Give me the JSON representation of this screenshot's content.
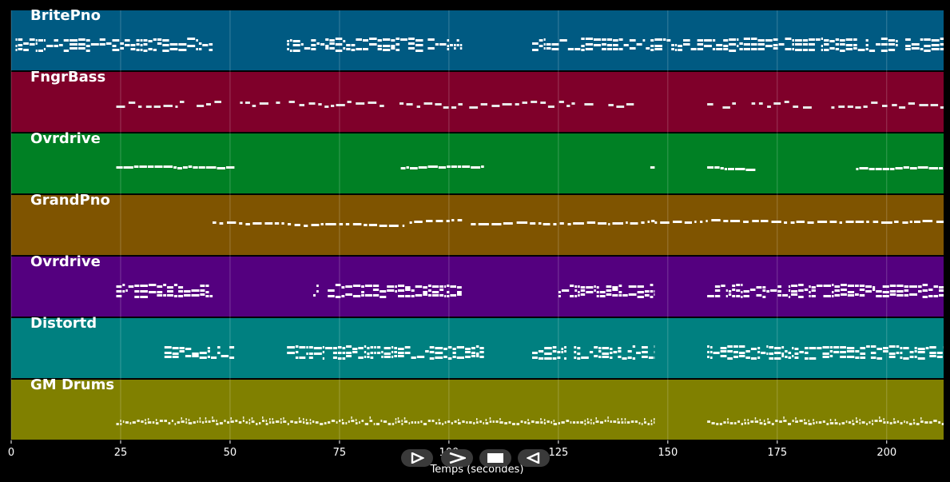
{
  "colors": {
    "background": "#000000",
    "note": "#ffffff",
    "grid": "#ffffff",
    "button": "#3a3a3a"
  },
  "controls": [
    {
      "name": "play-button",
      "icon": "play-outline-icon"
    },
    {
      "name": "fast-forward-button",
      "icon": "chevron-right-icon"
    },
    {
      "name": "stop-button",
      "icon": "stop-icon"
    },
    {
      "name": "rewind-button",
      "icon": "play-reverse-icon"
    }
  ],
  "chart_data": {
    "type": "piano-roll",
    "xlabel": "Temps (secondes)",
    "xlim": [
      0,
      213
    ],
    "xticks": [
      0,
      25,
      50,
      75,
      100,
      125,
      150,
      175,
      200
    ],
    "grid": true,
    "tracks": [
      {
        "name": "BritePno",
        "color": "#005a82",
        "style": "dense",
        "segments": [
          [
            1,
            24
          ],
          [
            24,
            46
          ],
          [
            63,
            103
          ],
          [
            119,
            147
          ],
          [
            147,
            213
          ]
        ]
      },
      {
        "name": "FngrBass",
        "color": "#7f002a",
        "style": "sparse",
        "segments": [
          [
            24,
            147
          ],
          [
            159,
            213
          ]
        ]
      },
      {
        "name": "Ovrdrive",
        "color": "#008024",
        "style": "line",
        "segments": [
          [
            24,
            51
          ],
          [
            89,
            108
          ],
          [
            146,
            147
          ],
          [
            159,
            170
          ],
          [
            193,
            213
          ]
        ]
      },
      {
        "name": "GrandPno",
        "color": "#7f5400",
        "style": "mixed",
        "segments": [
          [
            46,
            90
          ],
          [
            91,
            103
          ],
          [
            105,
            147
          ],
          [
            147,
            213
          ]
        ]
      },
      {
        "name": "Ovrdrive",
        "color": "#54007f",
        "style": "dense",
        "segments": [
          [
            24,
            46
          ],
          [
            69,
            103
          ],
          [
            125,
            147
          ],
          [
            159,
            213
          ]
        ]
      },
      {
        "name": "Distortd",
        "color": "#008080",
        "style": "dense",
        "segments": [
          [
            35,
            51
          ],
          [
            63,
            108
          ],
          [
            119,
            147
          ],
          [
            159,
            213
          ]
        ]
      },
      {
        "name": "GM Drums",
        "color": "#808000",
        "style": "drums",
        "segments": [
          [
            24,
            147
          ],
          [
            159,
            213
          ]
        ]
      }
    ]
  }
}
